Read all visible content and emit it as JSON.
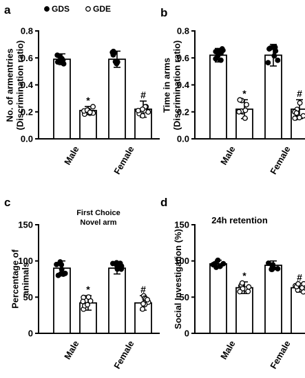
{
  "legend": {
    "gds": "GDS",
    "gde": "GDE"
  },
  "chart_data": [
    {
      "type": "bar",
      "panel": "a",
      "title": "",
      "ylabel_lines": [
        "No. of armentries",
        "(Discrimination ratio)"
      ],
      "categories": [
        "Male",
        "Female"
      ],
      "ylim": [
        0,
        0.8
      ],
      "yticks": [
        "0.0",
        "0.2",
        "0.4",
        "0.6",
        "0.8"
      ],
      "series": [
        {
          "name": "GDS",
          "values": [
            0.59,
            0.59
          ],
          "errors": [
            0.04,
            0.06
          ]
        },
        {
          "name": "GDE",
          "values": [
            0.21,
            0.22
          ],
          "errors": [
            0.03,
            0.06
          ]
        }
      ],
      "significance": [
        "*",
        "#"
      ],
      "legend_position": "top-left"
    },
    {
      "type": "bar",
      "panel": "b",
      "title": "",
      "ylabel_lines": [
        "Time in arms",
        "(Discrimination ratio)"
      ],
      "categories": [
        "Male",
        "Female"
      ],
      "ylim": [
        0,
        0.8
      ],
      "yticks": [
        "0.0",
        "0.2",
        "0.4",
        "0.6",
        "0.8"
      ],
      "series": [
        {
          "name": "GDS",
          "values": [
            0.62,
            0.62
          ],
          "errors": [
            0.05,
            0.08
          ]
        },
        {
          "name": "GDE",
          "values": [
            0.22,
            0.22
          ],
          "errors": [
            0.07,
            0.07
          ]
        }
      ],
      "significance": [
        "*",
        "#"
      ]
    },
    {
      "type": "bar",
      "panel": "c",
      "title_lines": [
        "First Choice",
        "Novel arm"
      ],
      "ylabel_lines": [
        "Percentage of",
        "animals"
      ],
      "categories": [
        "Male",
        "Female"
      ],
      "ylim": [
        0,
        150
      ],
      "yticks": [
        "0",
        "50",
        "100",
        "150"
      ],
      "series": [
        {
          "name": "GDS",
          "values": [
            90,
            90
          ],
          "errors": [
            10,
            8
          ]
        },
        {
          "name": "GDE",
          "values": [
            42,
            42
          ],
          "errors": [
            10,
            10
          ]
        }
      ],
      "significance": [
        "*",
        "#"
      ]
    },
    {
      "type": "bar",
      "panel": "d",
      "title_lines": [
        "24h retention"
      ],
      "ylabel_lines": [
        "Social Investigation (%)"
      ],
      "categories": [
        "Male",
        "Female"
      ],
      "ylim": [
        0,
        150
      ],
      "yticks": [
        "0",
        "50",
        "100",
        "150"
      ],
      "series": [
        {
          "name": "GDS",
          "values": [
            96,
            94
          ],
          "errors": [
            5,
            6
          ]
        },
        {
          "name": "GDE",
          "values": [
            63,
            63
          ],
          "errors": [
            8,
            6
          ]
        }
      ],
      "significance": [
        "*",
        "#"
      ]
    }
  ]
}
